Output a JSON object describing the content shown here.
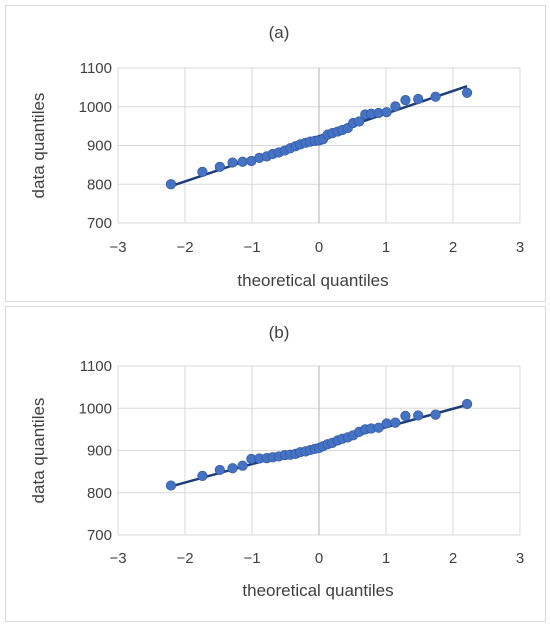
{
  "chart_data": [
    {
      "type": "scatter",
      "title": "(a)",
      "xlabel": "theoretical quantiles",
      "ylabel": "data quantiles",
      "xlim": [
        -3,
        3
      ],
      "ylim": [
        700,
        1100
      ],
      "xticks": [
        -3,
        -2,
        -1,
        0,
        1,
        2,
        3
      ],
      "yticks": [
        700,
        800,
        900,
        1000,
        1100
      ],
      "xtick_labels": [
        "−3",
        "−2",
        "−1",
        "0",
        "1",
        "2",
        "3"
      ],
      "ytick_labels": [
        "700",
        "800",
        "900",
        "1000",
        "1100"
      ],
      "grid": true,
      "series": [
        {
          "kind": "points",
          "x": [
            -2.21,
            -1.74,
            -1.48,
            -1.29,
            -1.14,
            -1.01,
            -0.89,
            -0.78,
            -0.69,
            -0.6,
            -0.51,
            -0.43,
            -0.35,
            -0.28,
            -0.2,
            -0.13,
            -0.06,
            0.0,
            0.06,
            0.13,
            0.2,
            0.28,
            0.35,
            0.43,
            0.51,
            0.6,
            0.69,
            0.78,
            0.89,
            1.01,
            1.14,
            1.29,
            1.48,
            1.74,
            2.21
          ],
          "y": [
            800,
            832,
            845,
            856,
            858,
            860,
            868,
            872,
            878,
            882,
            887,
            893,
            898,
            903,
            907,
            910,
            912,
            913,
            916,
            928,
            932,
            936,
            940,
            945,
            958,
            962,
            980,
            982,
            984,
            986,
            1001,
            1017,
            1020,
            1026,
            1036
          ]
        },
        {
          "kind": "fit-line",
          "x": [
            -2.21,
            2.21
          ],
          "y": [
            795,
            1053
          ]
        }
      ]
    },
    {
      "type": "scatter",
      "title": "(b)",
      "xlabel": "theoretical quantiles",
      "ylabel": "data quantiles",
      "xlim": [
        -3,
        3
      ],
      "ylim": [
        700,
        1100
      ],
      "xticks": [
        -3,
        -2,
        -1,
        0,
        1,
        2,
        3
      ],
      "yticks": [
        700,
        800,
        900,
        1000,
        1100
      ],
      "xtick_labels": [
        "−3",
        "−2",
        "−1",
        "0",
        "1",
        "2",
        "3"
      ],
      "ytick_labels": [
        "700",
        "800",
        "900",
        "1000",
        "1100"
      ],
      "grid": true,
      "series": [
        {
          "kind": "points",
          "x": [
            -2.21,
            -1.74,
            -1.48,
            -1.29,
            -1.14,
            -1.01,
            -0.89,
            -0.78,
            -0.69,
            -0.6,
            -0.51,
            -0.43,
            -0.35,
            -0.28,
            -0.2,
            -0.13,
            -0.06,
            0.0,
            0.06,
            0.13,
            0.2,
            0.28,
            0.35,
            0.43,
            0.51,
            0.6,
            0.69,
            0.78,
            0.89,
            1.01,
            1.14,
            1.29,
            1.48,
            1.74,
            2.21
          ],
          "y": [
            817,
            840,
            854,
            858,
            864,
            880,
            881,
            882,
            884,
            886,
            889,
            890,
            892,
            896,
            898,
            901,
            904,
            906,
            910,
            915,
            918,
            924,
            928,
            931,
            936,
            944,
            950,
            952,
            954,
            964,
            966,
            982,
            983,
            985,
            1010
          ]
        },
        {
          "kind": "fit-line",
          "x": [
            -2.21,
            2.21
          ],
          "y": [
            815,
            1008
          ]
        }
      ]
    }
  ]
}
